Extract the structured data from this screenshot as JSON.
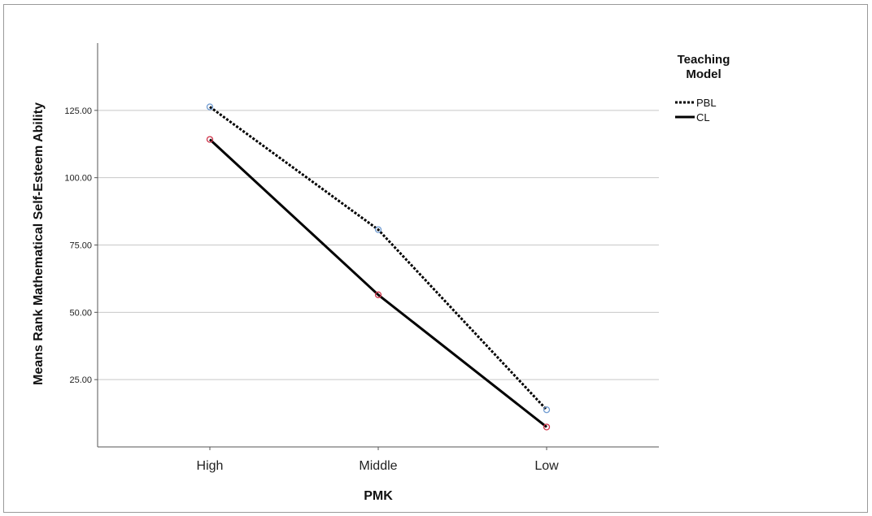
{
  "chart_data": {
    "type": "line",
    "title": "",
    "xlabel": "PMK",
    "ylabel": "Means Rank Mathematical Self-Esteem Ability",
    "categories": [
      "High",
      "Middle",
      "Low"
    ],
    "ylim": [
      0,
      150
    ],
    "yticks": [
      25,
      50,
      75,
      100,
      125
    ],
    "ytick_labels": [
      "25.00",
      "50.00",
      "75.00",
      "100.00",
      "125.00"
    ],
    "grid": "horizontal",
    "legend": {
      "title_lines": [
        "Teaching",
        "Model"
      ],
      "placement": "right"
    },
    "series": [
      {
        "name": "PBL",
        "values": [
          126.3,
          80.7,
          13.8
        ],
        "line_style": "dotted",
        "line_color": "#000000",
        "marker_color": "#6f9bd1"
      },
      {
        "name": "CL",
        "values": [
          114.2,
          56.5,
          7.4
        ],
        "line_style": "solid",
        "line_color": "#000000",
        "marker_color": "#d0344a"
      }
    ]
  }
}
